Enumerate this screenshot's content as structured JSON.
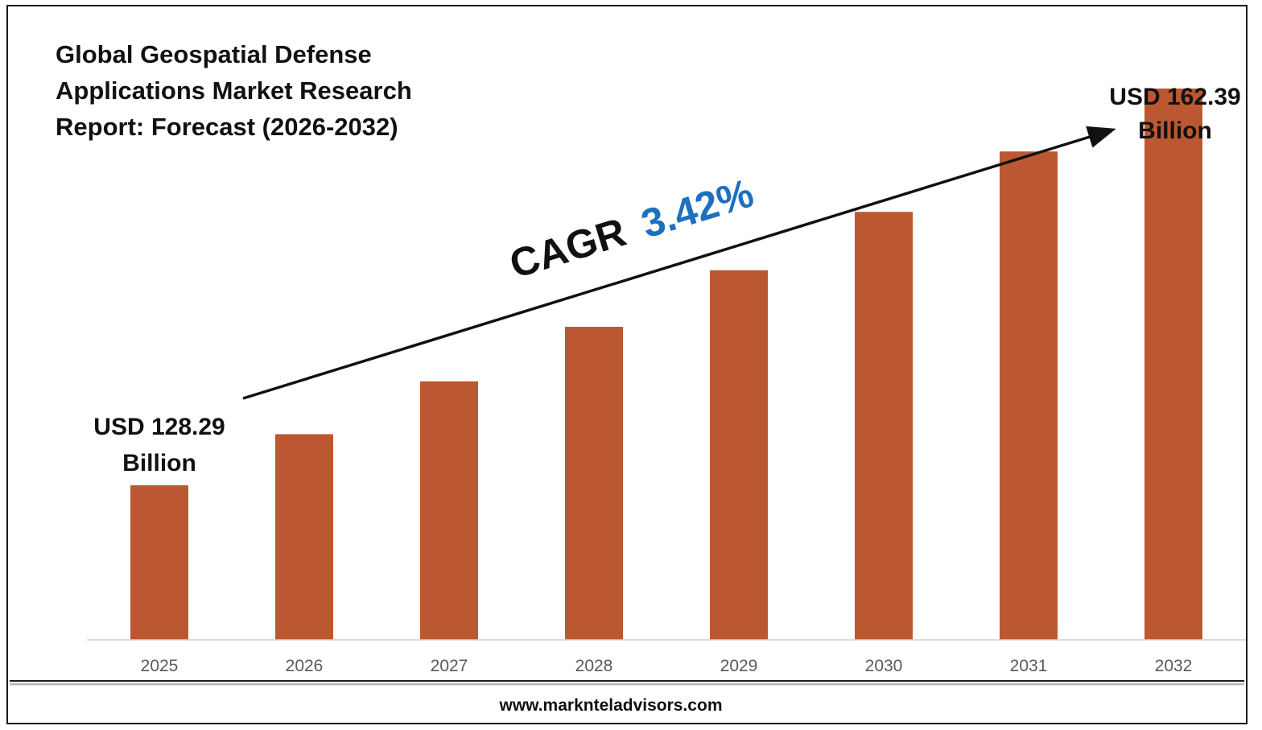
{
  "chart_data": {
    "type": "bar",
    "title_lines": [
      "Global Geospatial Defense",
      "Applications Market Research",
      "Report: Forecast (2026-2032)"
    ],
    "categories": [
      "2025",
      "2026",
      "2027",
      "2028",
      "2029",
      "2030",
      "2031",
      "2032"
    ],
    "values": [
      128.29,
      132.68,
      137.22,
      141.91,
      146.77,
      151.79,
      156.98,
      162.39
    ],
    "ylim": [
      115,
      170
    ],
    "grid": false,
    "bar_color": "#bc5831",
    "annotations": {
      "start": {
        "line1": "USD 128.29",
        "line2": "Billion"
      },
      "end": {
        "line1": "USD 162.39",
        "line2": "Billion"
      },
      "cagr_label": "CAGR",
      "cagr_value": "3.42%",
      "cagr_color": "#1f6fbf"
    }
  },
  "footer": {
    "website": "www.marknteladvisors.com"
  }
}
